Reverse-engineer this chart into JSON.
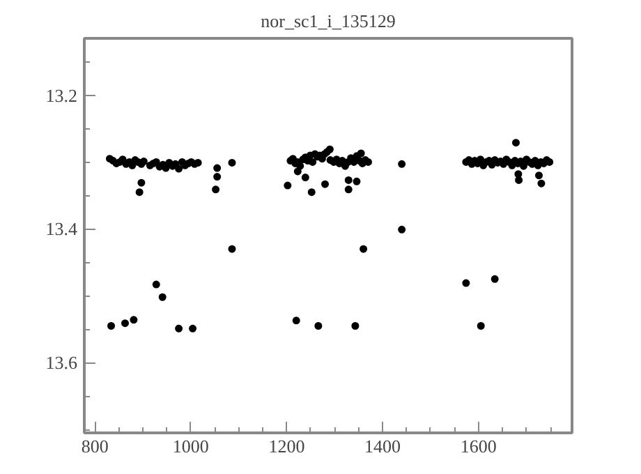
{
  "chart_data": {
    "type": "scatter",
    "title": "nor_sc1_i_135129",
    "x": [
      831,
      838,
      845,
      852,
      858,
      865,
      872,
      878,
      884,
      890,
      897,
      902,
      915,
      922,
      928,
      935,
      942,
      948,
      955,
      962,
      968,
      975,
      982,
      988,
      995,
      1001,
      1008,
      1015,
      893,
      897,
      1052,
      1055,
      1055,
      1086,
      1086,
      834,
      863,
      881,
      928,
      941,
      975,
      1004,
      1202,
      1208,
      1213,
      1218,
      1223,
      1228,
      1234,
      1239,
      1244,
      1249,
      1254,
      1259,
      1264,
      1269,
      1274,
      1279,
      1284,
      1291,
      1298,
      1304,
      1310,
      1316,
      1322,
      1328,
      1334,
      1340,
      1346,
      1352,
      1358,
      1364,
      1370,
      1223,
      1239,
      1252,
      1280,
      1329,
      1329,
      1346,
      1290,
      1355,
      1440,
      1440,
      1360,
      1220,
      1266,
      1343,
      1574,
      1580,
      1586,
      1592,
      1598,
      1604,
      1610,
      1616,
      1622,
      1628,
      1634,
      1640,
      1646,
      1652,
      1658,
      1664,
      1670,
      1676,
      1682,
      1688,
      1694,
      1700,
      1706,
      1712,
      1718,
      1724,
      1730,
      1736,
      1742,
      1748,
      1678,
      1684,
      1731,
      1726,
      1683,
      1574,
      1634,
      1605
    ],
    "values": [
      13.295,
      13.298,
      13.302,
      13.3,
      13.296,
      13.303,
      13.3,
      13.305,
      13.297,
      13.3,
      13.303,
      13.299,
      13.305,
      13.302,
      13.3,
      13.307,
      13.304,
      13.309,
      13.301,
      13.306,
      13.303,
      13.31,
      13.3,
      13.305,
      13.302,
      13.3,
      13.303,
      13.301,
      13.345,
      13.331,
      13.341,
      13.322,
      13.309,
      13.301,
      13.43,
      13.545,
      13.541,
      13.536,
      13.483,
      13.502,
      13.549,
      13.549,
      13.335,
      13.298,
      13.295,
      13.302,
      13.3,
      13.306,
      13.296,
      13.293,
      13.298,
      13.29,
      13.3,
      13.288,
      13.292,
      13.29,
      13.295,
      13.288,
      13.285,
      13.297,
      13.3,
      13.296,
      13.302,
      13.298,
      13.306,
      13.3,
      13.294,
      13.3,
      13.291,
      13.298,
      13.302,
      13.297,
      13.3,
      13.314,
      13.323,
      13.345,
      13.333,
      13.327,
      13.341,
      13.329,
      13.281,
      13.287,
      13.303,
      13.401,
      13.43,
      13.537,
      13.545,
      13.545,
      13.3,
      13.297,
      13.303,
      13.298,
      13.302,
      13.296,
      13.305,
      13.3,
      13.298,
      13.304,
      13.297,
      13.301,
      13.299,
      13.303,
      13.296,
      13.3,
      13.305,
      13.298,
      13.302,
      13.299,
      13.306,
      13.296,
      13.3,
      13.303,
      13.298,
      13.305,
      13.3,
      13.302,
      13.297,
      13.3,
      13.271,
      13.327,
      13.332,
      13.32,
      13.318,
      13.481,
      13.475,
      13.545
    ],
    "color": "#000000",
    "marker": "circle",
    "xlim": [
      778,
      1795
    ],
    "ylim": [
      13.705,
      13.115
    ],
    "xticks": [
      800,
      1000,
      1200,
      1400,
      1600
    ],
    "yticks": [
      13.2,
      13.4,
      13.6
    ],
    "grid": false
  }
}
